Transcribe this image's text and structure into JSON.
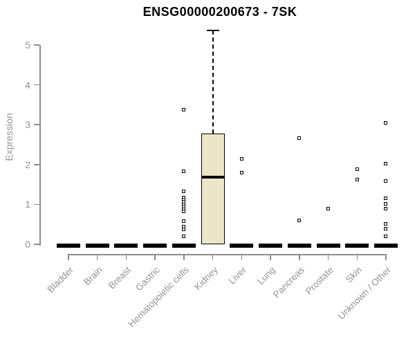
{
  "chart_data": {
    "type": "boxplot",
    "title": "ENSG00000200673 - 7SK",
    "ylabel": "Expression",
    "xlabel": "",
    "ylim": [
      0,
      5.4
    ],
    "yticks": [
      0,
      1,
      2,
      3,
      4,
      5
    ],
    "grid": false,
    "legend": "none",
    "categories": [
      "Bladder",
      "Brain",
      "Breast",
      "Gastric",
      "Hematopoietic cells",
      "Kidney",
      "Liver",
      "Lung",
      "Pancreas",
      "Prostate",
      "Skin",
      "Unknown / Other"
    ],
    "boxes": [
      {
        "category": "Bladder",
        "min": 0,
        "q1": 0,
        "median": 0,
        "q3": 0,
        "max": 0,
        "outliers": []
      },
      {
        "category": "Brain",
        "min": 0,
        "q1": 0,
        "median": 0,
        "q3": 0,
        "max": 0,
        "outliers": []
      },
      {
        "category": "Breast",
        "min": 0,
        "q1": 0,
        "median": 0,
        "q3": 0,
        "max": 0,
        "outliers": []
      },
      {
        "category": "Gastric",
        "min": 0,
        "q1": 0,
        "median": 0,
        "q3": 0,
        "max": 0,
        "outliers": []
      },
      {
        "category": "Hematopoietic cells",
        "min": 0,
        "q1": 0,
        "median": 0,
        "q3": 0,
        "max": 0,
        "outliers": [
          3.38,
          1.84,
          1.32,
          1.18,
          1.12,
          1.06,
          1.0,
          0.94,
          0.88,
          0.83,
          0.59,
          0.45,
          0.38,
          0.2
        ]
      },
      {
        "category": "Kidney",
        "min": 0,
        "q1": 0,
        "median": 1.68,
        "q3": 2.77,
        "max": 5.37,
        "outliers": []
      },
      {
        "category": "Liver",
        "min": 0,
        "q1": 0,
        "median": 0,
        "q3": 0,
        "max": 0,
        "outliers": [
          2.15,
          1.79
        ]
      },
      {
        "category": "Lung",
        "min": 0,
        "q1": 0,
        "median": 0,
        "q3": 0,
        "max": 0,
        "outliers": []
      },
      {
        "category": "Pancreas",
        "min": 0,
        "q1": 0,
        "median": 0,
        "q3": 0,
        "max": 0,
        "outliers": [
          2.67,
          0.6
        ]
      },
      {
        "category": "Prostate",
        "min": 0,
        "q1": 0,
        "median": 0,
        "q3": 0,
        "max": 0,
        "outliers": [
          0.9
        ]
      },
      {
        "category": "Skin",
        "min": 0,
        "q1": 0,
        "median": 0,
        "q3": 0,
        "max": 0,
        "outliers": [
          1.88,
          1.63
        ]
      },
      {
        "category": "Unknown / Other",
        "min": 0,
        "q1": 0,
        "median": 0,
        "q3": 0,
        "max": 0,
        "outliers": [
          3.05,
          2.02,
          1.59,
          1.15,
          1.02,
          0.89,
          0.52,
          0.39,
          0.2
        ]
      }
    ],
    "colors": {
      "box_fill": "#ECE6C8",
      "box_border": "#000000",
      "median": "#000000",
      "whisker": "#000000",
      "outlier_fill": "#ffffff",
      "axis": "#8c8c8c",
      "tick_label": "#949494",
      "title": "#000000",
      "background": "#ffffff"
    }
  }
}
